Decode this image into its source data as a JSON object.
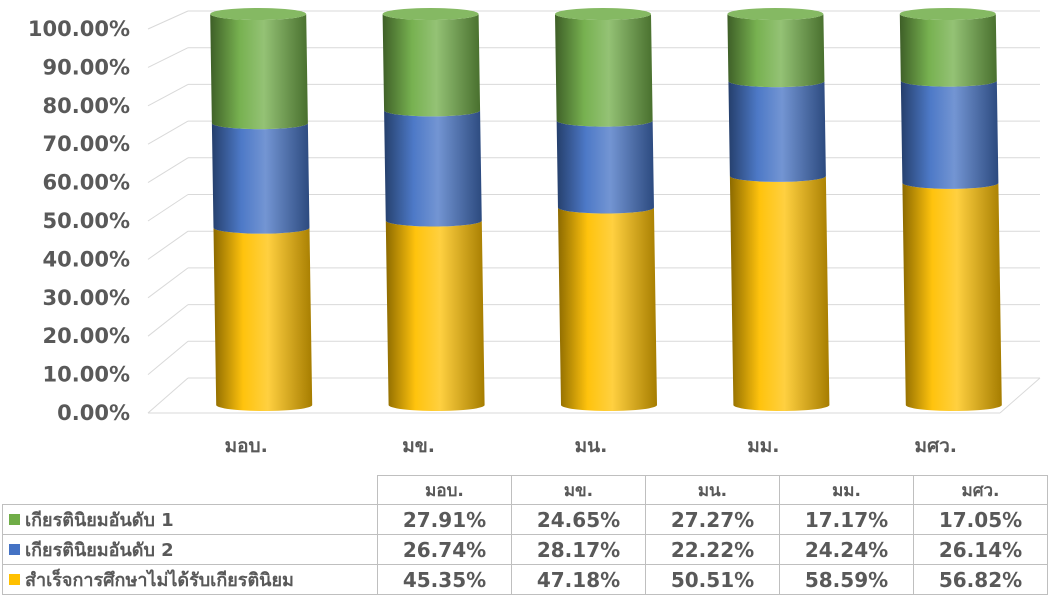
{
  "chart_data": {
    "type": "bar",
    "subtype": "stacked-100-cylinder-3d",
    "categories": [
      "มอบ.",
      "มข.",
      "มน.",
      "มม.",
      "มศว."
    ],
    "series": [
      {
        "name": "สำเร็จการศึกษาไม่ได้รับเกียรตินิยม",
        "values": [
          45.35,
          47.18,
          50.51,
          58.59,
          56.82
        ],
        "color": "#FFC000"
      },
      {
        "name": "เกียรตินิยมอันดับ 2",
        "values": [
          26.74,
          28.17,
          22.22,
          24.24,
          26.14
        ],
        "color": "#4472C4"
      },
      {
        "name": "เกียรตินิยมอันดับ 1",
        "values": [
          27.91,
          24.65,
          27.27,
          17.17,
          17.05
        ],
        "color": "#70AD47"
      }
    ],
    "yticks": [
      "0.00%",
      "10.00%",
      "20.00%",
      "30.00%",
      "40.00%",
      "50.00%",
      "60.00%",
      "70.00%",
      "80.00%",
      "90.00%",
      "100.00%"
    ],
    "ylim": [
      0,
      100
    ],
    "grid": true,
    "legend": "data-table"
  },
  "table": {
    "rows": [
      {
        "label": "เกียรตินิยมอันดับ 1",
        "color": "#70AD47",
        "values": [
          "27.91%",
          "24.65%",
          "27.27%",
          "17.17%",
          "17.05%"
        ]
      },
      {
        "label": "เกียรตินิยมอันดับ 2",
        "color": "#4472C4",
        "values": [
          "26.74%",
          "28.17%",
          "22.22%",
          "24.24%",
          "26.14%"
        ]
      },
      {
        "label": "สำเร็จการศึกษาไม่ได้รับเกียรตินิยม",
        "color": "#FFC000",
        "values": [
          "45.35%",
          "47.18%",
          "50.51%",
          "58.59%",
          "56.82%"
        ]
      }
    ]
  }
}
